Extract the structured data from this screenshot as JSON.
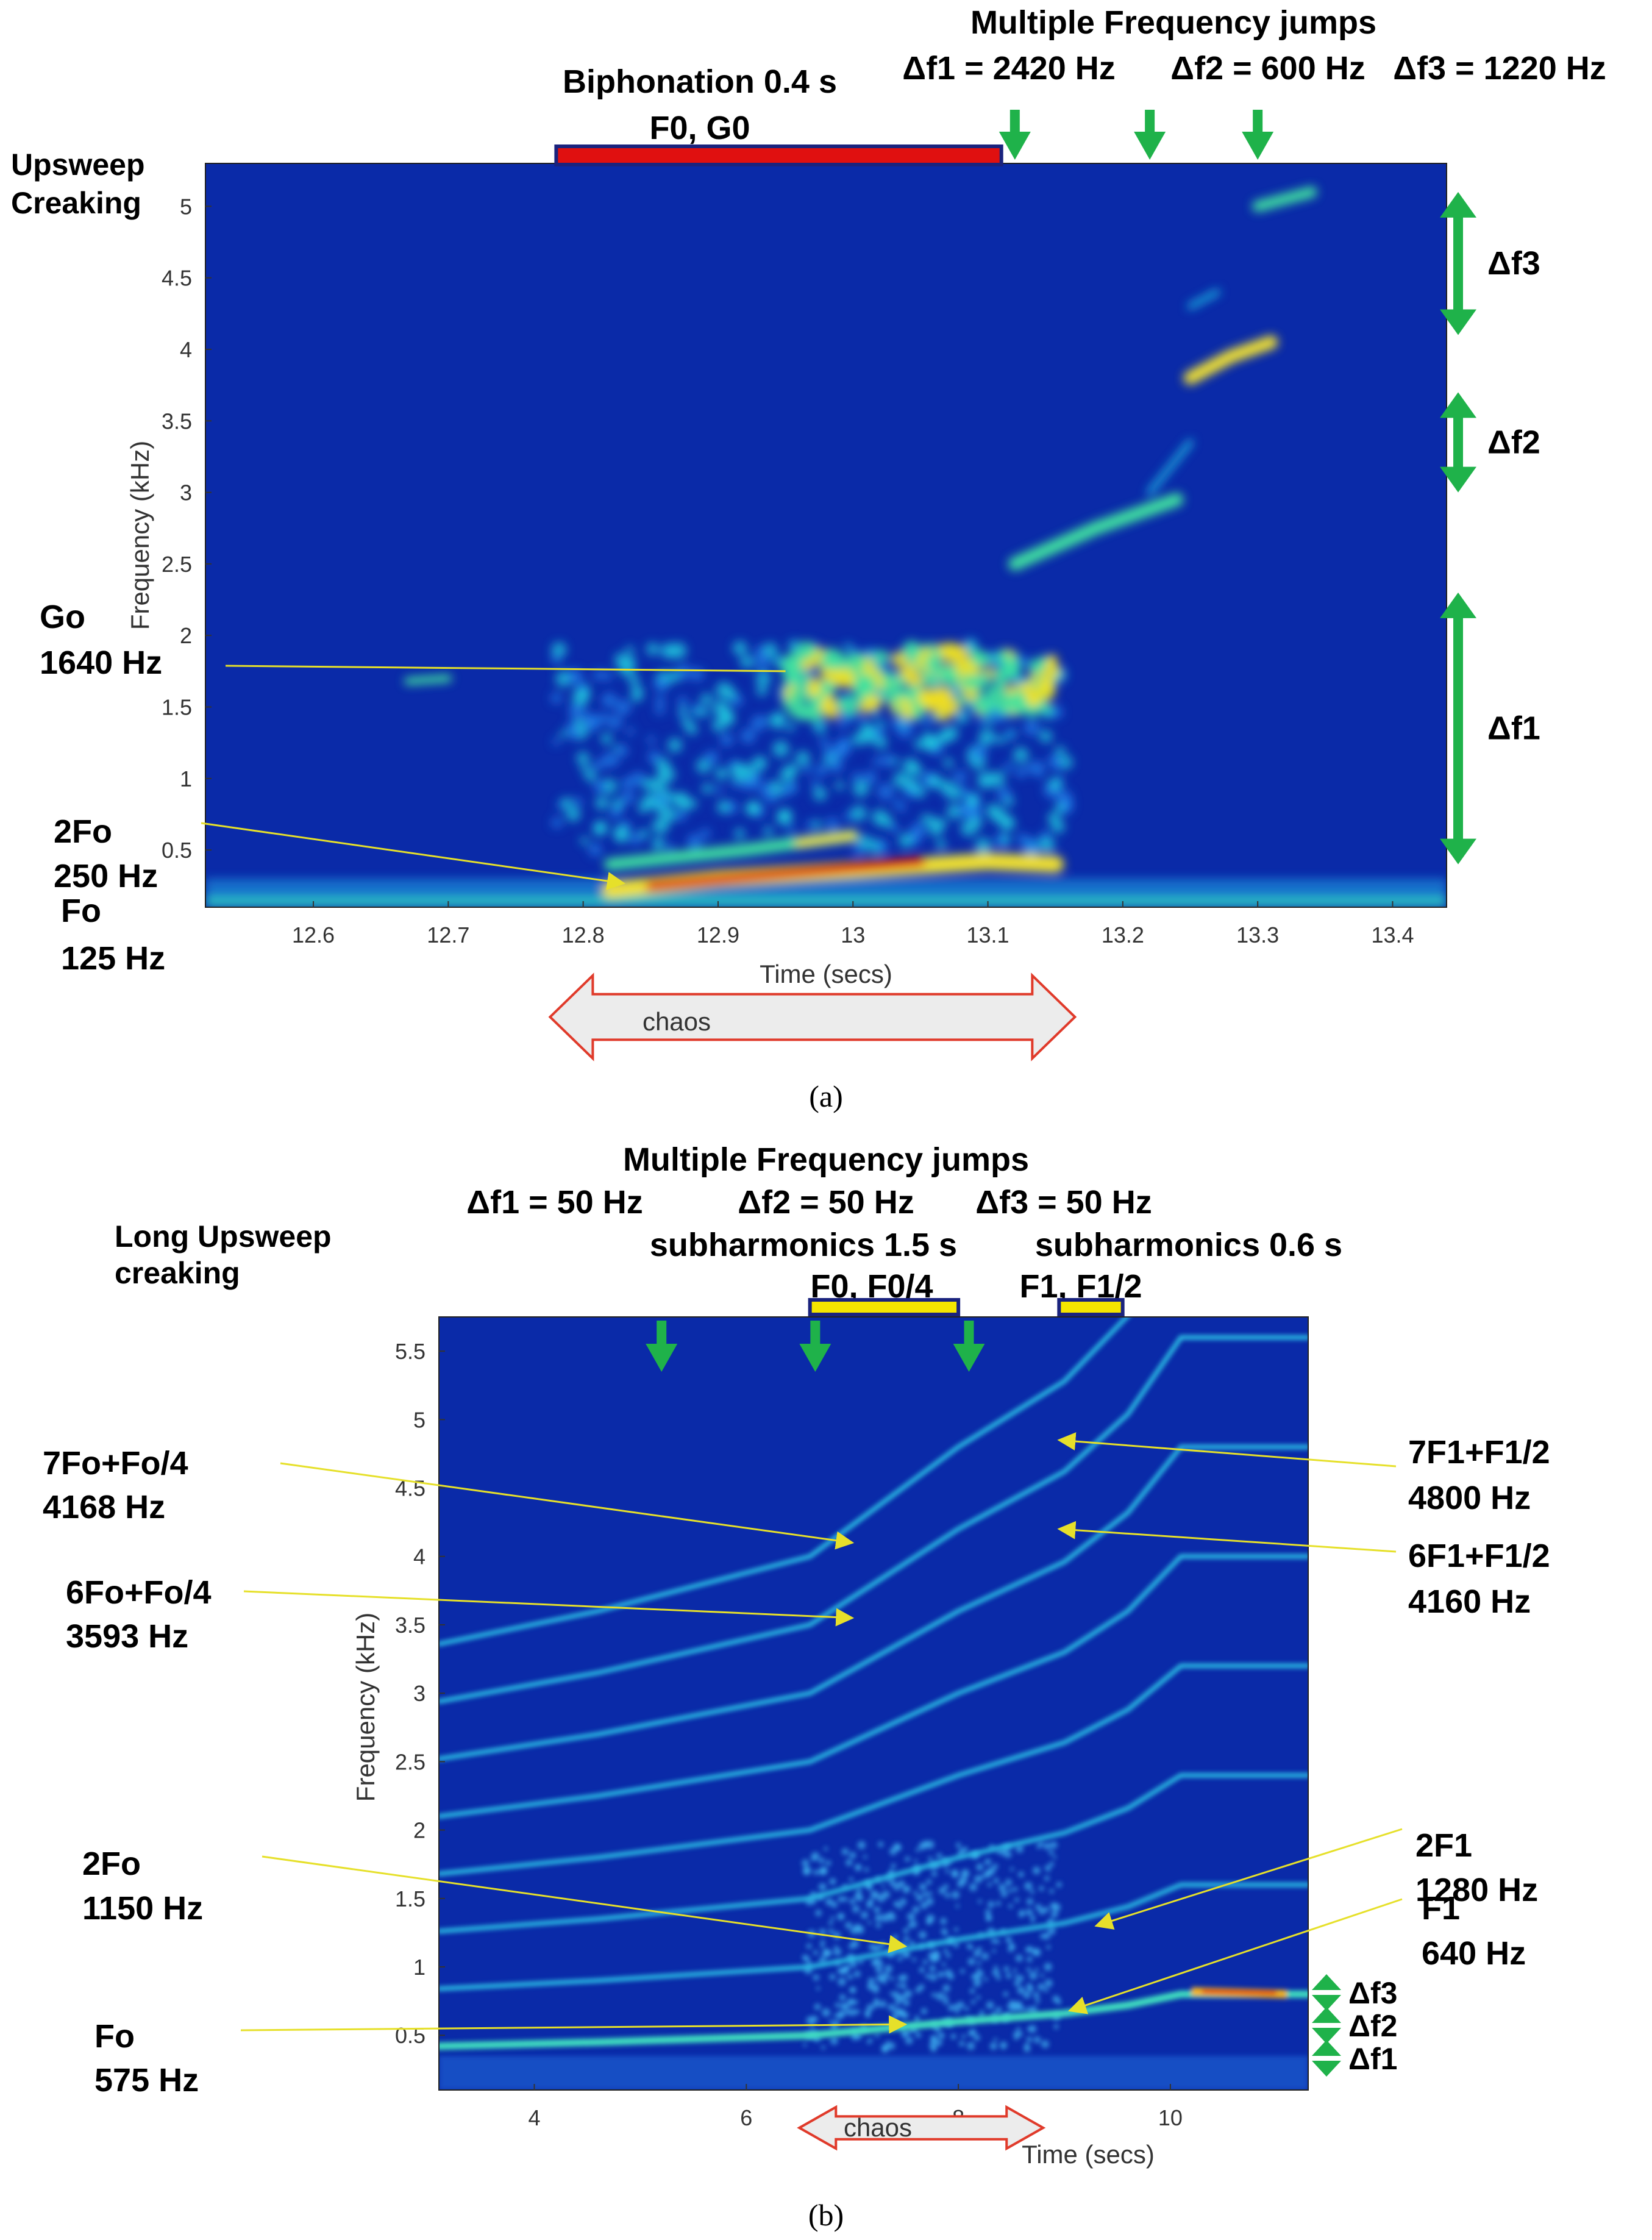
{
  "colors": {
    "spectrogram_bg": "#0a2aa8",
    "annotation_line": "#e6e02a",
    "arrow_green": "#1fb24a",
    "bar_red": "#e01010",
    "bar_yellow": "#f5e600",
    "bar_border": "#1a237e",
    "chaos_border": "#e03a2a",
    "chaos_fill": "#ececec"
  },
  "chart_data": [
    {
      "panel": "a",
      "type": "heatmap",
      "caption": "(a)",
      "xlabel": "Time (secs)",
      "ylabel": "Frequency (kHz)",
      "xlim": [
        12.52,
        13.44
      ],
      "ylim": [
        0.1,
        5.3
      ],
      "xticks": [
        "12.6",
        "12.7",
        "12.8",
        "12.9",
        "13",
        "13.1",
        "13.2",
        "13.3",
        "13.4"
      ],
      "yticks": [
        "0.5",
        "1",
        "1.5",
        "2",
        "2.5",
        "3",
        "3.5",
        "4",
        "4.5",
        "5"
      ],
      "header_title": "Multiple Frequency jumps",
      "jumps": [
        {
          "label": "Δf1 = 2420 Hz",
          "time": 13.12
        },
        {
          "label": "Δf2 = 600 Hz",
          "time": 13.22
        },
        {
          "label": "Δf3 = 1220 Hz",
          "time": 13.3
        }
      ],
      "biphonation": {
        "label1": "Biphonation 0.4 s",
        "label2": "F0, G0",
        "t_start": 12.78,
        "t_end": 13.11
      },
      "corner_label": [
        "Upsweep",
        "Creaking"
      ],
      "annotations": [
        {
          "name": "Go",
          "value": "1640 Hz",
          "freq": 1.75,
          "time": 12.95
        },
        {
          "name": "2Fo",
          "value": "250 Hz",
          "freq": 0.25,
          "time": 12.83
        },
        {
          "name": "Fo",
          "value": "125 Hz"
        }
      ],
      "side_jumps": [
        {
          "label": "Δf3",
          "f_low": 4.1,
          "f_high": 5.1
        },
        {
          "label": "Δf2",
          "f_low": 3.0,
          "f_high": 3.7
        },
        {
          "label": "Δf1",
          "f_low": 0.4,
          "f_high": 2.3
        }
      ],
      "chaos": {
        "label": "chaos",
        "t_start": 12.78,
        "t_end": 13.16
      }
    },
    {
      "panel": "b",
      "type": "heatmap",
      "caption": "(b)",
      "xlabel": "Time (secs)",
      "ylabel": "Frequency (kHz)",
      "xlim": [
        3.1,
        11.3
      ],
      "ylim": [
        0.1,
        5.75
      ],
      "xticks": [
        "4",
        "6",
        "8",
        "10"
      ],
      "yticks": [
        "0.5",
        "1",
        "1.5",
        "2",
        "2.5",
        "3",
        "3.5",
        "4",
        "4.5",
        "5",
        "5.5"
      ],
      "header_title": "Multiple Frequency jumps",
      "jumps": [
        {
          "label": "Δf1 = 50 Hz",
          "time": 5.2
        },
        {
          "label": "Δf2 = 50 Hz",
          "time": 6.65
        },
        {
          "label": "Δf3 = 50 Hz",
          "time": 8.1
        }
      ],
      "subharmonics": [
        {
          "label1": "subharmonics 1.5 s",
          "label2": "F0, F0/4",
          "t_start": 6.6,
          "t_end": 8.0
        },
        {
          "label1": "subharmonics 0.6 s",
          "label2": "F1, F1/2",
          "t_start": 8.95,
          "t_end": 9.55
        }
      ],
      "corner_label": [
        "Long Upsweep",
        "creaking"
      ],
      "left_annotations": [
        {
          "name": "7Fo+Fo/4",
          "value": "4168 Hz",
          "freq": 4.1,
          "time": 7.0
        },
        {
          "name": "6Fo+Fo/4",
          "value": "3593 Hz",
          "freq": 3.55,
          "time": 7.0
        },
        {
          "name": "2Fo",
          "value": "1150 Hz",
          "freq": 1.15,
          "time": 7.5
        },
        {
          "name": "Fo",
          "value": "575 Hz",
          "freq": 0.58,
          "time": 7.5
        }
      ],
      "right_annotations": [
        {
          "name": "7F1+F1/2",
          "value": "4800 Hz",
          "freq": 4.85,
          "time": 8.95
        },
        {
          "name": "6F1+F1/2",
          "value": "4160 Hz",
          "freq": 4.2,
          "time": 8.95
        },
        {
          "name": "2F1",
          "value": "1280 Hz",
          "freq": 1.3,
          "time": 9.3
        },
        {
          "name": "F1",
          "value": "640 Hz",
          "freq": 0.68,
          "time": 9.05
        }
      ],
      "side_jumps": [
        {
          "label": "Δf3"
        },
        {
          "label": "Δf2"
        },
        {
          "label": "Δf1"
        }
      ],
      "chaos": {
        "label": "chaos",
        "t_start": 6.5,
        "t_end": 8.8
      }
    }
  ]
}
